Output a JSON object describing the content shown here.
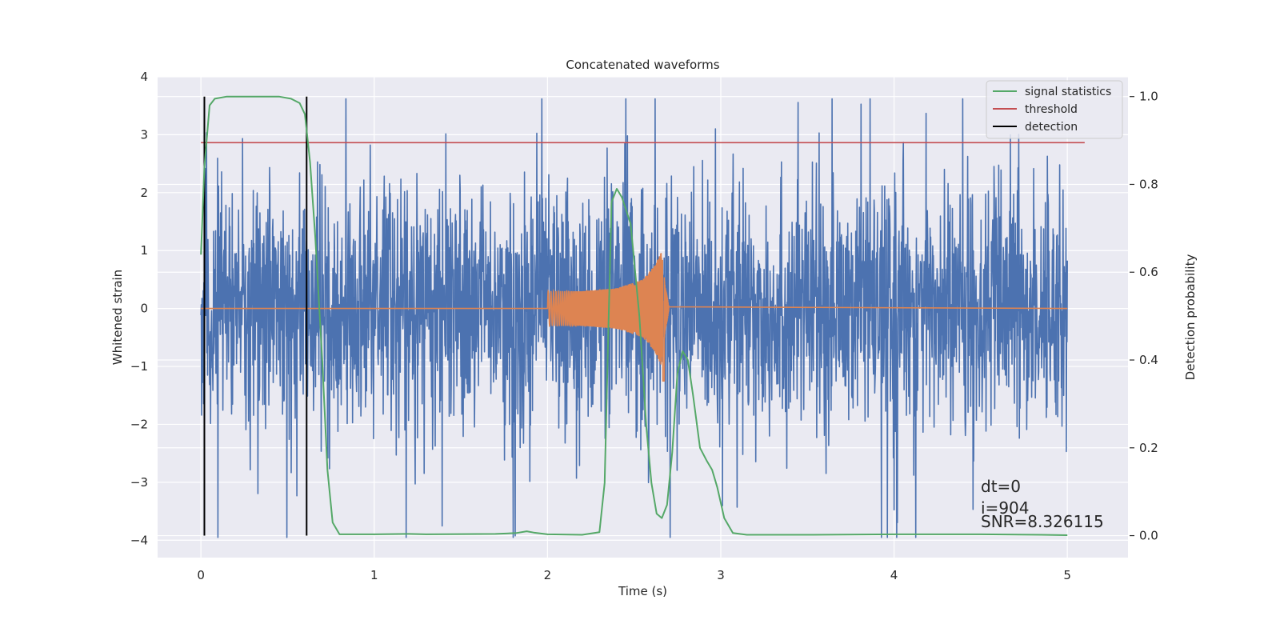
{
  "chart_data": {
    "type": "line",
    "title": "Concatenated waveforms",
    "xlabel": "Time (s)",
    "ylabel": "Whitened strain",
    "y2label": "Detection probability",
    "xlim": [
      -0.25,
      5.35
    ],
    "ylim": [
      -4.3,
      4.0
    ],
    "y2lim": [
      -0.05,
      1.045
    ],
    "xticks": [
      0,
      1,
      2,
      3,
      4,
      5
    ],
    "yticks": [
      -4,
      -3,
      -2,
      -1,
      0,
      1,
      2,
      3,
      4
    ],
    "y2ticks": [
      0.0,
      0.2,
      0.4,
      0.6,
      0.8,
      1.0
    ],
    "grid": true,
    "legend_position": "top-right",
    "colors": {
      "background": "#eaeaf2",
      "grid": "#ffffff",
      "strain": "#4c72b0",
      "template": "#dd8452",
      "signal_statistics": "#55a868",
      "threshold": "#c44e52",
      "detection": "#000000"
    },
    "series": [
      {
        "name": "",
        "role": "whitened strain (noisy data)",
        "x_range": [
          0,
          5
        ],
        "typical_amplitude": 1.2,
        "peak_max": 3.62,
        "peak_min": -3.95
      },
      {
        "name": "",
        "role": "injected waveform",
        "x_range": [
          2.0,
          2.7
        ],
        "envelope_points": [
          [
            2.0,
            0.3
          ],
          [
            2.2,
            0.3
          ],
          [
            2.4,
            0.35
          ],
          [
            2.55,
            0.5
          ],
          [
            2.62,
            0.75
          ],
          [
            2.66,
            1.0
          ],
          [
            2.68,
            0.4
          ],
          [
            2.7,
            0.05
          ]
        ],
        "negative_peak": [
          2.67,
          -1.25
        ]
      },
      {
        "name": "signal statistics",
        "axis": "right",
        "points": [
          [
            0.0,
            0.64
          ],
          [
            0.02,
            0.84
          ],
          [
            0.05,
            0.98
          ],
          [
            0.08,
            0.995
          ],
          [
            0.15,
            1.0
          ],
          [
            0.3,
            1.0
          ],
          [
            0.45,
            1.0
          ],
          [
            0.52,
            0.995
          ],
          [
            0.57,
            0.985
          ],
          [
            0.6,
            0.96
          ],
          [
            0.63,
            0.85
          ],
          [
            0.66,
            0.68
          ],
          [
            0.7,
            0.4
          ],
          [
            0.73,
            0.15
          ],
          [
            0.76,
            0.03
          ],
          [
            0.8,
            0.003
          ],
          [
            1.0,
            0.003
          ],
          [
            1.2,
            0.004
          ],
          [
            1.3,
            0.003
          ],
          [
            1.7,
            0.004
          ],
          [
            1.82,
            0.006
          ],
          [
            1.88,
            0.01
          ],
          [
            1.92,
            0.007
          ],
          [
            2.0,
            0.003
          ],
          [
            2.2,
            0.002
          ],
          [
            2.3,
            0.008
          ],
          [
            2.33,
            0.12
          ],
          [
            2.35,
            0.45
          ],
          [
            2.37,
            0.76
          ],
          [
            2.4,
            0.79
          ],
          [
            2.43,
            0.77
          ],
          [
            2.48,
            0.71
          ],
          [
            2.53,
            0.5
          ],
          [
            2.57,
            0.25
          ],
          [
            2.6,
            0.12
          ],
          [
            2.63,
            0.05
          ],
          [
            2.66,
            0.04
          ],
          [
            2.69,
            0.07
          ],
          [
            2.72,
            0.19
          ],
          [
            2.75,
            0.37
          ],
          [
            2.78,
            0.42
          ],
          [
            2.81,
            0.4
          ],
          [
            2.84,
            0.32
          ],
          [
            2.88,
            0.2
          ],
          [
            2.92,
            0.17
          ],
          [
            2.95,
            0.15
          ],
          [
            2.98,
            0.11
          ],
          [
            3.02,
            0.04
          ],
          [
            3.07,
            0.006
          ],
          [
            3.15,
            0.002
          ],
          [
            3.5,
            0.002
          ],
          [
            4.0,
            0.003
          ],
          [
            4.5,
            0.003
          ],
          [
            4.85,
            0.002
          ],
          [
            5.0,
            0.001
          ]
        ]
      },
      {
        "name": "threshold",
        "axis": "right",
        "points": [
          [
            0.0,
            0.895
          ],
          [
            5.1,
            0.895
          ]
        ]
      },
      {
        "name": "detection",
        "axis": "right",
        "vlines": [
          0.02,
          0.61
        ],
        "vline_range": [
          0.0,
          1.0
        ]
      }
    ],
    "annotations": [
      "dt=0",
      "i=904",
      "SNR=8.326115"
    ]
  }
}
